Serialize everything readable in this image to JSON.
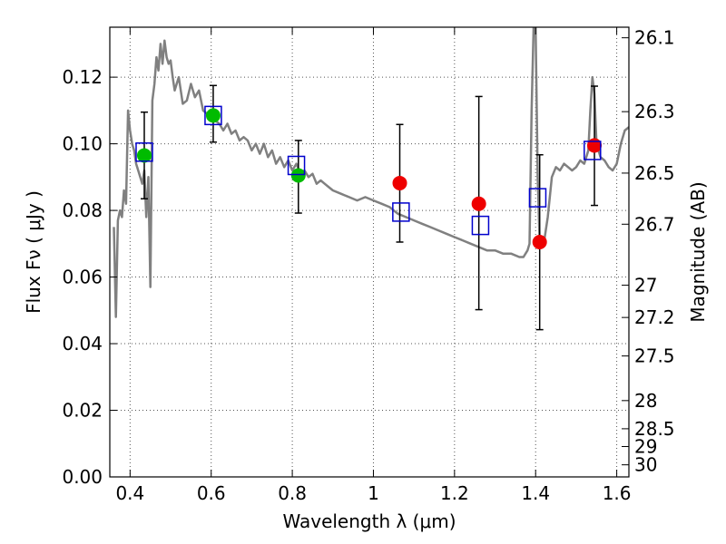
{
  "chart_data": {
    "type": "scatter",
    "title": "",
    "xlabel": "Wavelength  λ (μm)",
    "ylabel": "Flux  Fν  ( μJy )",
    "y2label": "Magnitude (AB)",
    "xlim": [
      0.35,
      1.63
    ],
    "ylim": [
      0.0,
      0.135
    ],
    "grid": true,
    "x_ticks": [
      {
        "v": 0.4,
        "label": "0.4"
      },
      {
        "v": 0.6,
        "label": "0.6"
      },
      {
        "v": 0.8,
        "label": "0.8"
      },
      {
        "v": 1.0,
        "label": "1"
      },
      {
        "v": 1.2,
        "label": "1.2"
      },
      {
        "v": 1.4,
        "label": "1.4"
      },
      {
        "v": 1.6,
        "label": "1.6"
      }
    ],
    "y_ticks": [
      {
        "v": 0.0,
        "label": "0.00"
      },
      {
        "v": 0.02,
        "label": "0.02"
      },
      {
        "v": 0.04,
        "label": "0.04"
      },
      {
        "v": 0.06,
        "label": "0.06"
      },
      {
        "v": 0.08,
        "label": "0.08"
      },
      {
        "v": 0.1,
        "label": "0.10"
      },
      {
        "v": 0.12,
        "label": "0.12"
      }
    ],
    "y2_ticks": [
      {
        "mag": 26.1,
        "label": "26.1"
      },
      {
        "mag": 26.3,
        "label": "26.3"
      },
      {
        "mag": 26.5,
        "label": "26.5"
      },
      {
        "mag": 26.7,
        "label": "26.7"
      },
      {
        "mag": 27.0,
        "label": "27"
      },
      {
        "mag": 27.2,
        "label": "27.2"
      },
      {
        "mag": 27.5,
        "label": "27.5"
      },
      {
        "mag": 28.0,
        "label": "28"
      },
      {
        "mag": 28.5,
        "label": "28.5"
      },
      {
        "mag": 29.0,
        "label": "29"
      },
      {
        "mag": 30.0,
        "label": "30"
      }
    ],
    "colors": {
      "sed": "#808080",
      "green": "#00bb00",
      "red": "#ee0000",
      "model": "#0000cc",
      "errorbar": "#000000",
      "grid": "#555555"
    },
    "sed_model": {
      "x": [
        0.36,
        0.365,
        0.37,
        0.375,
        0.38,
        0.385,
        0.39,
        0.395,
        0.4,
        0.405,
        0.41,
        0.415,
        0.42,
        0.425,
        0.43,
        0.435,
        0.44,
        0.445,
        0.45,
        0.455,
        0.46,
        0.465,
        0.47,
        0.475,
        0.48,
        0.485,
        0.49,
        0.495,
        0.5,
        0.505,
        0.51,
        0.515,
        0.52,
        0.53,
        0.54,
        0.55,
        0.56,
        0.57,
        0.58,
        0.59,
        0.6,
        0.61,
        0.62,
        0.63,
        0.64,
        0.65,
        0.66,
        0.67,
        0.68,
        0.69,
        0.7,
        0.71,
        0.72,
        0.73,
        0.74,
        0.75,
        0.76,
        0.77,
        0.78,
        0.79,
        0.8,
        0.81,
        0.82,
        0.83,
        0.84,
        0.85,
        0.86,
        0.87,
        0.88,
        0.89,
        0.9,
        0.92,
        0.94,
        0.96,
        0.98,
        1.0,
        1.02,
        1.04,
        1.06,
        1.08,
        1.1,
        1.12,
        1.14,
        1.16,
        1.18,
        1.2,
        1.22,
        1.24,
        1.26,
        1.28,
        1.3,
        1.32,
        1.34,
        1.36,
        1.37,
        1.38,
        1.385,
        1.39,
        1.395,
        1.4,
        1.405,
        1.41,
        1.42,
        1.43,
        1.44,
        1.45,
        1.46,
        1.47,
        1.48,
        1.49,
        1.5,
        1.51,
        1.52,
        1.53,
        1.535,
        1.54,
        1.545,
        1.55,
        1.56,
        1.57,
        1.58,
        1.59,
        1.6,
        1.61,
        1.62,
        1.63
      ],
      "y": [
        0.075,
        0.048,
        0.077,
        0.08,
        0.078,
        0.086,
        0.082,
        0.11,
        0.104,
        0.1,
        0.098,
        0.094,
        0.092,
        0.09,
        0.088,
        0.092,
        0.078,
        0.09,
        0.057,
        0.113,
        0.118,
        0.126,
        0.122,
        0.13,
        0.124,
        0.131,
        0.126,
        0.124,
        0.125,
        0.12,
        0.116,
        0.118,
        0.12,
        0.112,
        0.113,
        0.118,
        0.114,
        0.116,
        0.11,
        0.109,
        0.108,
        0.107,
        0.106,
        0.104,
        0.106,
        0.103,
        0.104,
        0.101,
        0.102,
        0.101,
        0.098,
        0.1,
        0.097,
        0.1,
        0.096,
        0.098,
        0.094,
        0.096,
        0.093,
        0.095,
        0.092,
        0.094,
        0.091,
        0.092,
        0.09,
        0.091,
        0.088,
        0.089,
        0.088,
        0.087,
        0.086,
        0.085,
        0.084,
        0.083,
        0.084,
        0.083,
        0.082,
        0.081,
        0.079,
        0.078,
        0.077,
        0.076,
        0.075,
        0.074,
        0.073,
        0.072,
        0.071,
        0.07,
        0.069,
        0.068,
        0.068,
        0.067,
        0.067,
        0.066,
        0.066,
        0.068,
        0.07,
        0.11,
        0.135,
        0.135,
        0.09,
        0.07,
        0.07,
        0.078,
        0.09,
        0.093,
        0.092,
        0.094,
        0.093,
        0.092,
        0.093,
        0.095,
        0.094,
        0.098,
        0.11,
        0.12,
        0.115,
        0.1,
        0.096,
        0.095,
        0.093,
        0.092,
        0.094,
        0.1,
        0.104,
        0.105
      ]
    },
    "series": [
      {
        "marker": "circle",
        "color": "green",
        "x": [
          0.435,
          0.605,
          0.815
        ],
        "y": [
          0.0965,
          0.1085,
          0.0905
        ]
      },
      {
        "marker": "circle",
        "color": "red",
        "x": [
          1.065,
          1.26,
          1.41,
          1.545
        ],
        "y": [
          0.0882,
          0.082,
          0.0705,
          0.0995
        ]
      },
      {
        "marker": "open-square",
        "color": "model",
        "x": [
          0.435,
          0.605,
          0.81,
          1.068,
          1.264,
          1.405,
          1.54
        ],
        "y": [
          0.0975,
          0.1085,
          0.0935,
          0.0795,
          0.0755,
          0.0838,
          0.098
        ]
      }
    ],
    "error_bars": [
      {
        "x": 0.435,
        "y": 0.0965,
        "lo": 0.0835,
        "hi": 0.1095
      },
      {
        "x": 0.605,
        "y": 0.1085,
        "lo": 0.1005,
        "hi": 0.1175
      },
      {
        "x": 0.815,
        "y": 0.0905,
        "lo": 0.0792,
        "hi": 0.101
      },
      {
        "x": 1.065,
        "y": 0.0882,
        "lo": 0.0705,
        "hi": 0.1058
      },
      {
        "x": 1.26,
        "y": 0.082,
        "lo": 0.0502,
        "hi": 0.1142
      },
      {
        "x": 1.41,
        "y": 0.0705,
        "lo": 0.0442,
        "hi": 0.0967
      },
      {
        "x": 1.545,
        "y": 0.0995,
        "lo": 0.0815,
        "hi": 0.1173
      }
    ]
  }
}
